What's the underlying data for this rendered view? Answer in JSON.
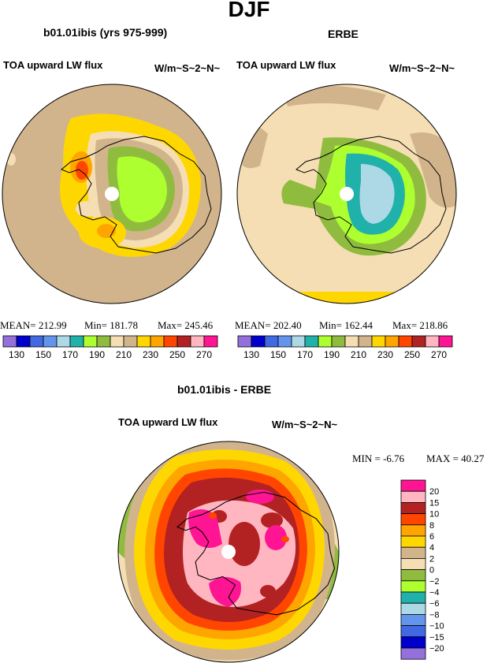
{
  "title": "DJF",
  "panels": [
    {
      "case": "b01.01ibis (yrs 975-999)",
      "variable": "TOA upward LW flux",
      "units": "W/m~S~2~N~",
      "mean": "MEAN= 212.99",
      "min": "Min= 181.78",
      "max": "Max= 245.46"
    },
    {
      "case": "ERBE",
      "variable": "TOA upward LW flux",
      "units": "W/m~S~2~N~",
      "mean": "MEAN= 202.40",
      "min": "Min= 162.44",
      "max": "Max= 218.86"
    }
  ],
  "diff_panel": {
    "case": "b01.01ibis - ERBE",
    "variable": "TOA upward LW flux",
    "units": "W/m~S~2~N~",
    "min_text": "MIN =   -6.76",
    "max_text": "MAX =   40.27"
  },
  "horizontal_colorbar": {
    "colors": [
      "#9370db",
      "#0000cd",
      "#4169e1",
      "#6495ed",
      "#add8e6",
      "#20b2aa",
      "#adff2f",
      "#8fbc3f",
      "#f5deb3",
      "#d2b48c",
      "#ffd700",
      "#ffa500",
      "#ff4500",
      "#b22222",
      "#ffb6c1",
      "#ff1493"
    ],
    "labels": [
      "130",
      "150",
      "170",
      "190",
      "210",
      "230",
      "250",
      "270"
    ]
  },
  "vertical_colorbar": {
    "colors_top_to_bottom": [
      "#ff1493",
      "#ffb6c1",
      "#b22222",
      "#ff4500",
      "#ffa500",
      "#ffd700",
      "#d2b48c",
      "#f5deb3",
      "#8fbc3f",
      "#adff2f",
      "#20b2aa",
      "#add8e6",
      "#6495ed",
      "#4169e1",
      "#0000cd",
      "#9370db"
    ],
    "labels": [
      "20",
      "15",
      "10",
      "8",
      "6",
      "4",
      "2",
      "0",
      "−2",
      "−4",
      "−6",
      "−8",
      "−10",
      "−15",
      "−20"
    ]
  },
  "colors": {
    "tan": "#d2b48c",
    "wheat": "#f5deb3",
    "gold": "#ffd700",
    "orange": "#ffa500",
    "orangered": "#ff4500",
    "firebrick": "#b22222",
    "pink": "#ffb6c1",
    "deeppink": "#ff1493",
    "green": "#8fbc3f",
    "lightgreen": "#adff2f",
    "teal": "#20b2aa",
    "lightblue": "#add8e6"
  }
}
